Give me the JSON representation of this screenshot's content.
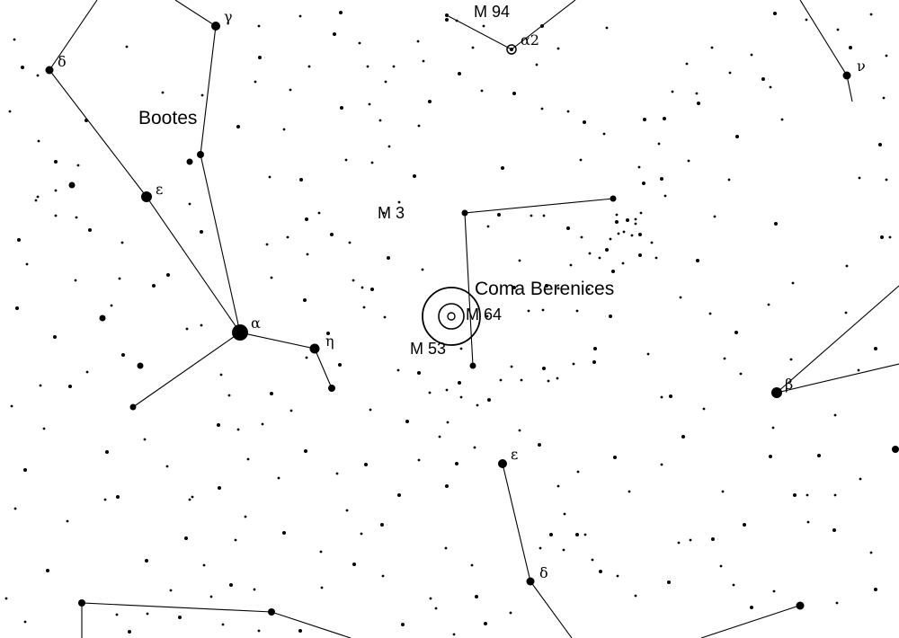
{
  "colors": {
    "background": "#ffffff",
    "ink": "#000000"
  },
  "constellations": [
    {
      "id": "bootes",
      "label": "Bootes"
    },
    {
      "id": "coma-berenices",
      "label": "Coma Berenices"
    }
  ],
  "deep_sky_objects": [
    {
      "id": "m94",
      "label": "M 94"
    },
    {
      "id": "m3",
      "label": "M 3"
    },
    {
      "id": "m64",
      "label": "M 64"
    },
    {
      "id": "m53",
      "label": "M 53"
    }
  ],
  "star_labels": {
    "gamma_boo": "γ",
    "delta_boo": "δ",
    "epsilon_boo": "ε",
    "alpha_boo": "α",
    "eta_boo": "η",
    "alpha2_cvn": "α2",
    "nu": "ν",
    "beta_com": "β",
    "epsilon_vir": "ε",
    "delta_vir": "δ"
  }
}
